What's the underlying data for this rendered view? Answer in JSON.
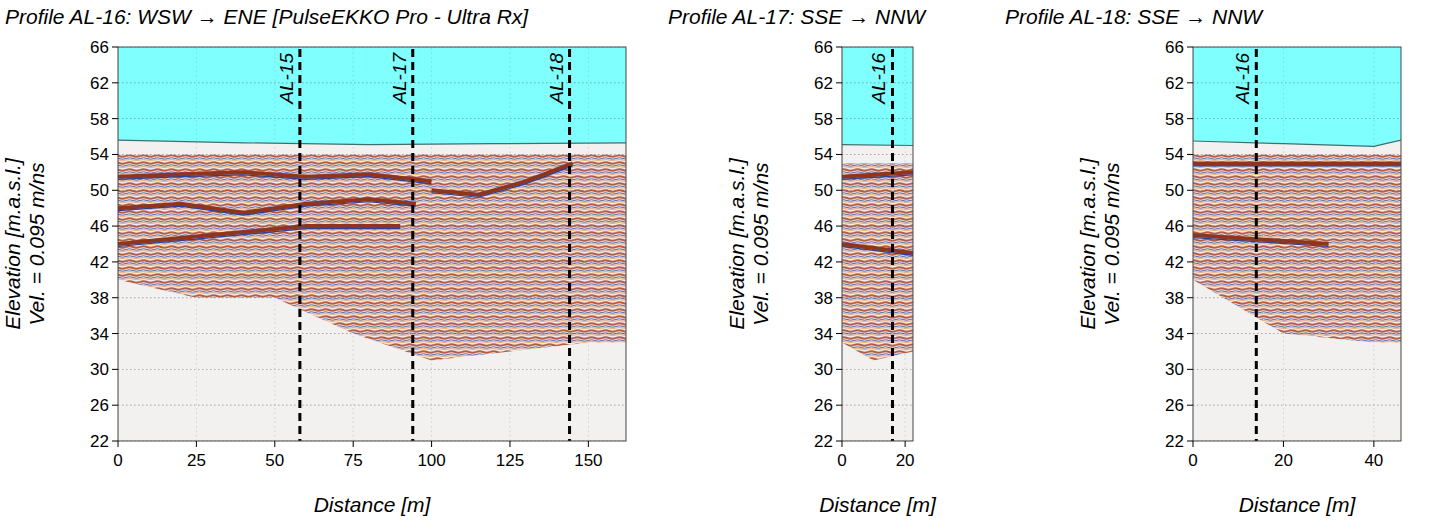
{
  "chart_data": [
    {
      "type": "radargram",
      "title": "Profile AL-16: WSW → ENE [PulseEKKO Pro - Ultra Rx]",
      "x_label": "Distance  [m]",
      "y_label": "Elevation [m.a.s.l.]",
      "y_label_2": "Vel. = 0.095 m/ns",
      "xlim": [
        0,
        162
      ],
      "ylim": [
        22,
        66
      ],
      "xticks": [
        0,
        25,
        50,
        75,
        100,
        125,
        150
      ],
      "yticks": [
        22,
        26,
        30,
        34,
        38,
        42,
        46,
        50,
        54,
        58,
        62,
        66
      ],
      "grid": true,
      "water_surface": {
        "x": [
          0,
          40,
          80,
          120,
          162
        ],
        "values": [
          55.6,
          55.3,
          55.1,
          55.2,
          55.3
        ]
      },
      "signal_zone": {
        "x": [
          0,
          25,
          50,
          75,
          100,
          125,
          150,
          162
        ],
        "top": [
          54,
          54,
          54,
          54,
          54,
          54,
          54,
          54
        ],
        "bottom": [
          40,
          38,
          38,
          34,
          31,
          32,
          33,
          33
        ]
      },
      "reflectors": [
        {
          "x": [
            0,
            20,
            40,
            60,
            80,
            100
          ],
          "values": [
            51.5,
            51.8,
            52,
            51.5,
            51.8,
            51
          ]
        },
        {
          "x": [
            0,
            20,
            40,
            60,
            80,
            95
          ],
          "values": [
            48,
            48.5,
            47.5,
            48.5,
            49,
            48.5
          ]
        },
        {
          "x": [
            0,
            30,
            60,
            90
          ],
          "values": [
            44,
            45,
            46,
            46
          ]
        },
        {
          "x": [
            100,
            115,
            130,
            145
          ],
          "values": [
            50,
            49.5,
            51,
            53
          ]
        }
      ],
      "intersections": [
        {
          "label": "AL-15",
          "x": 58
        },
        {
          "label": "AL-17",
          "x": 94
        },
        {
          "label": "AL-18",
          "x": 144
        }
      ]
    },
    {
      "type": "radargram",
      "title": "Profile AL-17: SSE → NNW",
      "x_label": "Distance  [m]",
      "y_label": "Elevation [m.a.s.l.]",
      "y_label_2": "Vel. = 0.095 m/ns",
      "xlim": [
        0,
        22.5
      ],
      "ylim": [
        22,
        66
      ],
      "xticks": [
        0,
        20
      ],
      "yticks": [
        22,
        26,
        30,
        34,
        38,
        42,
        46,
        50,
        54,
        58,
        62,
        66
      ],
      "grid": true,
      "water_surface": {
        "x": [
          0,
          22.5
        ],
        "values": [
          55.1,
          55
        ]
      },
      "signal_zone": {
        "x": [
          0,
          10,
          22.5
        ],
        "top": [
          53,
          53,
          53
        ],
        "bottom": [
          33,
          31,
          32
        ]
      },
      "reflectors": [
        {
          "x": [
            0,
            22.5
          ],
          "values": [
            51.5,
            52
          ]
        },
        {
          "x": [
            0,
            22.5
          ],
          "values": [
            44,
            43
          ]
        }
      ],
      "intersections": [
        {
          "label": "AL-16",
          "x": 16
        }
      ]
    },
    {
      "type": "radargram",
      "title": "Profile AL-18: SSE → NNW",
      "x_label": "Distance  [m]",
      "y_label": "Elevation [m.a.s.l.]",
      "y_label_2": "Vel. = 0.095 m/ns",
      "xlim": [
        0,
        46
      ],
      "ylim": [
        22,
        66
      ],
      "xticks": [
        0,
        20,
        40
      ],
      "yticks": [
        22,
        26,
        30,
        34,
        38,
        42,
        46,
        50,
        54,
        58,
        62,
        66
      ],
      "grid": true,
      "water_surface": {
        "x": [
          0,
          20,
          40,
          46
        ],
        "values": [
          55.5,
          55.2,
          54.9,
          55.6
        ]
      },
      "signal_zone": {
        "x": [
          0,
          20,
          40,
          46
        ],
        "top": [
          54,
          54,
          54,
          54
        ],
        "bottom": [
          40,
          34,
          33,
          33
        ]
      },
      "reflectors": [
        {
          "x": [
            0,
            46
          ],
          "values": [
            53,
            53
          ]
        },
        {
          "x": [
            0,
            30
          ],
          "values": [
            45,
            44
          ]
        }
      ],
      "intersections": [
        {
          "label": "AL-16",
          "x": 14
        }
      ]
    }
  ]
}
